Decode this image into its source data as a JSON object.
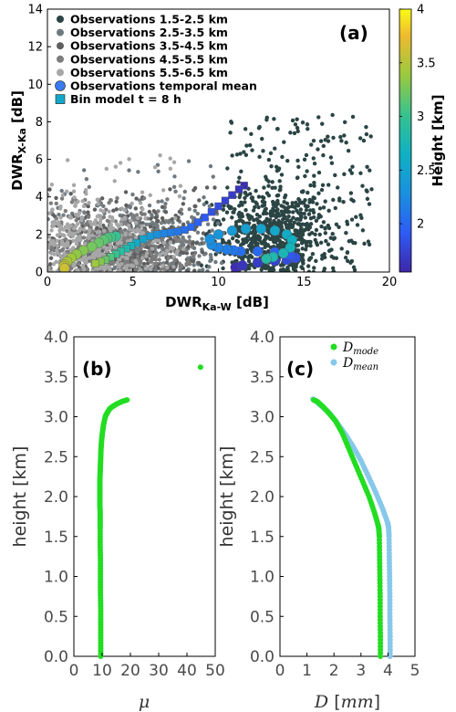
{
  "chart_data": [
    {
      "id": "a",
      "type": "scatter",
      "panel_label": "(a)",
      "xlabel_main": "DWR",
      "xlabel_sub": "Ka-W",
      "xlabel_unit": " [dB]",
      "ylabel_main": "DWR",
      "ylabel_sub": "X-Ka",
      "ylabel_unit": " [dB]",
      "xlim": [
        0,
        20
      ],
      "ylim": [
        0,
        14
      ],
      "xticks": [
        0,
        5,
        10,
        15,
        20
      ],
      "yticks": [
        0,
        2,
        4,
        6,
        8,
        10,
        12,
        14
      ],
      "legend_position": "top-left",
      "series": [
        {
          "name": "Observations 1.5-2.5 km",
          "color": "#2b4444",
          "x_range": [
            8,
            20
          ],
          "y_range": [
            0,
            9.2
          ],
          "center": [
            13.2,
            2.0
          ]
        },
        {
          "name": "Observations 2.5-3.5 km",
          "color": "#6f7a80",
          "x_range": [
            0,
            11
          ],
          "y_range": [
            0,
            6
          ],
          "center": [
            5.5,
            1.5
          ]
        },
        {
          "name": "Observations 3.5-4.5 km",
          "color": "#5e5e5e",
          "x_range": [
            0,
            10
          ],
          "y_range": [
            0,
            4.5
          ],
          "center": [
            4.5,
            1.3
          ]
        },
        {
          "name": "Observations 4.5-5.5 km",
          "color": "#7d7d7d",
          "x_range": [
            0,
            9
          ],
          "y_range": [
            0,
            4
          ],
          "center": [
            3.5,
            1.2
          ]
        },
        {
          "name": "Observations 5.5-6.5 km",
          "color": "#a7a7a7",
          "x_range": [
            0,
            8
          ],
          "y_range": [
            0,
            6.3
          ],
          "center": [
            2.0,
            1.5
          ]
        },
        {
          "name": "Observations temporal mean",
          "marker": "circle",
          "x": [
            11.0,
            11.4,
            12.3,
            13.3,
            14.0,
            14.5,
            14.2,
            13.3,
            12.3,
            11.3,
            10.9,
            10.5,
            10.0,
            9.6,
            9.5,
            10.0,
            10.8,
            11.6,
            12.5,
            13.3,
            14.0,
            14.3,
            14.2,
            13.8,
            13.2,
            12.8,
            4.0,
            3.7,
            3.5,
            3.3,
            3.0,
            2.6,
            2.1,
            1.7,
            1.4,
            1.15,
            1.0,
            0.95,
            1.0
          ],
          "y": [
            0.25,
            0.35,
            0.5,
            0.6,
            0.65,
            0.75,
            0.9,
            1.05,
            1.1,
            1.1,
            1.15,
            1.2,
            1.3,
            1.45,
            1.75,
            2.0,
            2.2,
            2.3,
            2.3,
            2.2,
            2.0,
            1.7,
            1.3,
            1.0,
            0.8,
            0.7,
            1.9,
            1.85,
            1.8,
            1.7,
            1.55,
            1.35,
            1.15,
            0.95,
            0.75,
            0.55,
            0.4,
            0.3,
            0.2
          ],
          "height": [
            1.6,
            1.65,
            1.7,
            1.75,
            1.8,
            1.85,
            1.9,
            1.95,
            2.0,
            2.05,
            2.1,
            2.15,
            2.2,
            2.25,
            2.3,
            2.35,
            2.4,
            2.45,
            2.5,
            2.55,
            2.6,
            2.65,
            2.7,
            2.75,
            2.8,
            2.85,
            3.0,
            3.05,
            3.1,
            3.15,
            3.2,
            3.25,
            3.3,
            3.35,
            3.4,
            3.45,
            3.5,
            3.55,
            3.6
          ]
        },
        {
          "name": "Bin model t = 8 h",
          "marker": "square",
          "x": [
            11.5,
            11.2,
            10.8,
            10.4,
            10.0,
            9.6,
            9.2,
            8.8,
            8.4,
            8.0,
            7.6,
            7.2,
            6.8,
            6.4,
            6.0,
            5.6,
            5.2,
            4.9,
            4.6,
            4.3,
            4.0,
            3.7,
            3.4,
            3.1,
            2.8
          ],
          "y": [
            4.6,
            4.4,
            4.1,
            3.8,
            3.5,
            3.2,
            2.9,
            2.65,
            2.4,
            2.25,
            2.15,
            2.1,
            2.05,
            2.0,
            1.9,
            1.75,
            1.55,
            1.4,
            1.25,
            1.1,
            0.95,
            0.8,
            0.65,
            0.55,
            0.45
          ],
          "height": [
            1.6,
            1.65,
            1.7,
            1.75,
            1.8,
            1.85,
            1.9,
            1.95,
            2.0,
            2.05,
            2.1,
            2.15,
            2.2,
            2.3,
            2.4,
            2.5,
            2.6,
            2.7,
            2.8,
            2.9,
            3.0,
            3.1,
            3.2,
            3.3,
            3.4
          ]
        }
      ],
      "colorbar": {
        "label": "Height [km]",
        "range": [
          1.55,
          4.0
        ],
        "ticks": [
          2,
          2.5,
          3,
          3.5,
          4
        ],
        "colormap": "parula"
      }
    },
    {
      "id": "b",
      "type": "scatter",
      "panel_label": "(b)",
      "xlabel": "μ",
      "ylabel": "height [km]",
      "xlim": [
        0,
        50
      ],
      "ylim": [
        0,
        4
      ],
      "xticks": [
        0,
        10,
        20,
        30,
        40,
        50
      ],
      "yticks": [
        "0.0",
        "0.5",
        "1.0",
        "1.5",
        "2.0",
        "2.5",
        "3.0",
        "3.5",
        "4.0"
      ],
      "series": [
        {
          "color": "#22dd22",
          "x": [
            9.5,
            9.5,
            9.5,
            9.5,
            9.4,
            9.4,
            9.4,
            9.3,
            9.3,
            9.3,
            9.3,
            9.2,
            9.2,
            9.2,
            9.2,
            9.3,
            9.4,
            9.5,
            9.6,
            9.8,
            10.1,
            10.5,
            11.1,
            11.8,
            12.7,
            13.8,
            15.2,
            17.0,
            18.8,
            44.8
          ],
          "y": [
            0.0,
            0.2,
            0.4,
            0.6,
            0.8,
            1.0,
            1.2,
            1.4,
            1.6,
            1.7,
            1.8,
            1.9,
            2.0,
            2.1,
            2.2,
            2.3,
            2.4,
            2.5,
            2.6,
            2.7,
            2.8,
            2.9,
            3.0,
            3.05,
            3.1,
            3.13,
            3.16,
            3.19,
            3.21,
            3.62
          ]
        }
      ]
    },
    {
      "id": "c",
      "type": "scatter",
      "panel_label": "(c)",
      "xlabel_sym": "D",
      "xlabel_unit": "mm",
      "ylabel": "height [km]",
      "xlim": [
        0,
        5
      ],
      "ylim": [
        0,
        4
      ],
      "xticks": [
        0,
        1,
        2,
        3,
        4,
        5
      ],
      "yticks": [
        "0.0",
        "0.5",
        "1.0",
        "1.5",
        "2.0",
        "2.5",
        "3.0",
        "3.5",
        "4.0"
      ],
      "legend_position": "top-left",
      "series": [
        {
          "name_sym": "D",
          "name_sub": "mode",
          "color": "#22dd22",
          "x": [
            3.72,
            3.72,
            3.71,
            3.71,
            3.7,
            3.69,
            3.68,
            3.66,
            3.63,
            3.5,
            3.3,
            3.05,
            2.8,
            2.55,
            2.3,
            2.05,
            1.8,
            1.58,
            1.38,
            1.25
          ],
          "y": [
            0.0,
            0.25,
            0.5,
            0.75,
            1.0,
            1.25,
            1.5,
            1.6,
            1.65,
            1.8,
            2.0,
            2.2,
            2.4,
            2.6,
            2.8,
            2.95,
            3.05,
            3.13,
            3.19,
            3.21
          ]
        },
        {
          "name_sym": "D",
          "name_sub": "mean",
          "color": "#87c8ea",
          "x": [
            4.08,
            4.08,
            4.07,
            4.07,
            4.06,
            4.05,
            4.04,
            4.02,
            3.98,
            3.8,
            3.55,
            3.28,
            3.0,
            2.72,
            2.42,
            2.1,
            1.82,
            1.55,
            1.35,
            1.22
          ],
          "y": [
            0.0,
            0.25,
            0.5,
            0.75,
            1.0,
            1.25,
            1.5,
            1.62,
            1.68,
            1.85,
            2.05,
            2.25,
            2.45,
            2.62,
            2.78,
            2.93,
            3.05,
            3.13,
            3.19,
            3.22
          ]
        }
      ]
    }
  ]
}
